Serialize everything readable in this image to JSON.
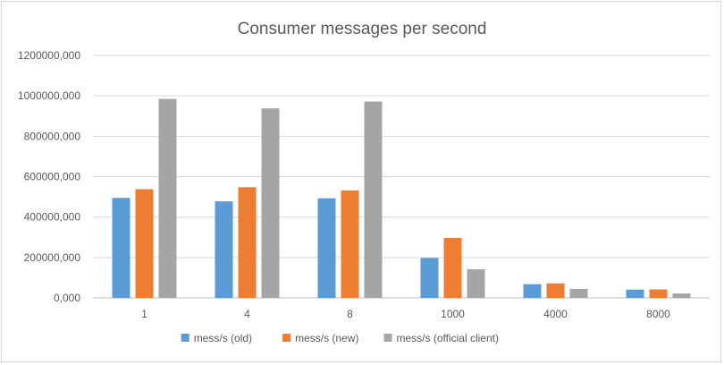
{
  "chart_data": {
    "type": "bar",
    "title": "Consumer messages per second",
    "xlabel": "",
    "ylabel": "",
    "categories": [
      "1",
      "4",
      "8",
      "1000",
      "4000",
      "8000"
    ],
    "series": [
      {
        "name": "mess/s (old)",
        "color": "#5b9bd5",
        "values": [
          495000,
          478000,
          493000,
          198000,
          68000,
          41000
        ]
      },
      {
        "name": "mess/s (new)",
        "color": "#ed7d31",
        "values": [
          538000,
          548000,
          532000,
          297000,
          72000,
          42000
        ]
      },
      {
        "name": "mess/s (official client)",
        "color": "#a5a5a5",
        "values": [
          985000,
          938000,
          972000,
          142000,
          45000,
          22000
        ]
      }
    ],
    "ylim": [
      0,
      1200000
    ],
    "yticks": [
      0,
      200000,
      400000,
      600000,
      800000,
      1000000,
      1200000
    ],
    "ytick_labels": [
      "0,000",
      "200000,000",
      "400000,000",
      "600000,000",
      "800000,000",
      "1000000,000",
      "1200000,000"
    ],
    "grid": true,
    "legend_position": "bottom"
  }
}
